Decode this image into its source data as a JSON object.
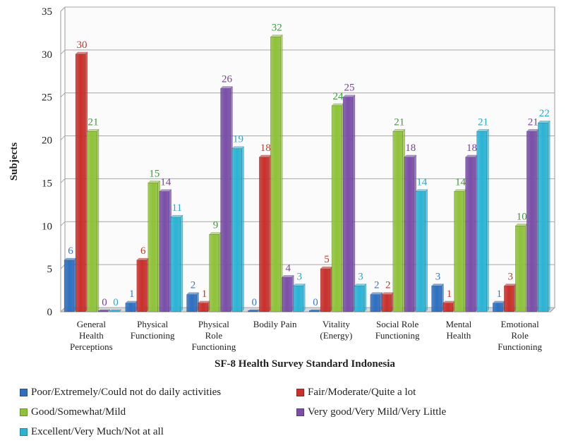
{
  "chart_data": {
    "type": "bar",
    "title": "",
    "xlabel": "SF-8 Health Survey Standard Indonesia",
    "ylabel": "Subjects",
    "ylim": [
      0,
      35
    ],
    "yticks": [
      0,
      5,
      10,
      15,
      20,
      25,
      30,
      35
    ],
    "grid": true,
    "legend_position": "bottom",
    "categories": [
      [
        "General",
        "Health",
        "Perceptions"
      ],
      [
        "Physical",
        "Functioning"
      ],
      [
        "Physical",
        "Role",
        "Functioning"
      ],
      [
        "Bodily Pain"
      ],
      [
        "Vitality",
        "(Energy)"
      ],
      [
        "Social Role",
        "Functioning"
      ],
      [
        "Mental",
        "Health"
      ],
      [
        "Emotional",
        "Role",
        "Functioning"
      ]
    ],
    "series": [
      {
        "name": "Poor/Extremely/Could not do daily activities",
        "color": "#2e6fc0",
        "label_color": "#3a78c8",
        "values": [
          6,
          1,
          2,
          0,
          0,
          2,
          3,
          1
        ]
      },
      {
        "name": "Fair/Moderate/Quite a lot",
        "color": "#c8302c",
        "label_color": "#c0392b",
        "values": [
          30,
          6,
          1,
          18,
          5,
          2,
          1,
          3
        ]
      },
      {
        "name": "Good/Somewhat/Mild",
        "color": "#8fc23a",
        "label_color": "#3c9a3c",
        "values": [
          21,
          15,
          9,
          32,
          24,
          21,
          14,
          10
        ]
      },
      {
        "name": "Very good/Very Mild/Very Little",
        "color": "#7a4fa8",
        "label_color": "#7a3f9e",
        "values": [
          0,
          14,
          26,
          4,
          25,
          18,
          18,
          21
        ]
      },
      {
        "name": "Excellent/Very Much/Not at all",
        "color": "#2cb3d4",
        "label_color": "#2aa6cc",
        "values": [
          0,
          11,
          19,
          3,
          3,
          14,
          21,
          22
        ]
      }
    ]
  }
}
